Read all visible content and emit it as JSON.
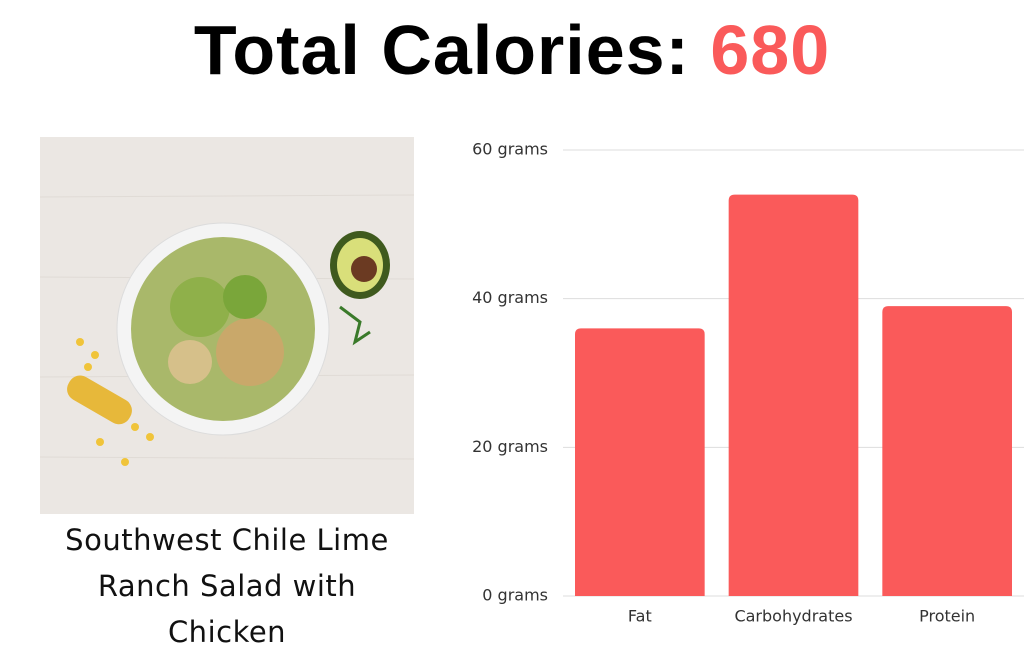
{
  "header": {
    "title": "Total Calories:",
    "calories": "680"
  },
  "caption": "Southwest Chile Lime Ranch Salad with Chicken",
  "chart_data": {
    "type": "bar",
    "categories": [
      "Fat",
      "Carbohydrates",
      "Protein"
    ],
    "values": [
      36,
      54,
      39
    ],
    "color": "#fa5a5a",
    "ylim": [
      0,
      60
    ],
    "yticks": [
      {
        "value": 0,
        "label": "0 grams"
      },
      {
        "value": 20,
        "label": "20 grams"
      },
      {
        "value": 40,
        "label": "40 grams"
      },
      {
        "value": 60,
        "label": "60 grams"
      }
    ],
    "grid": true
  }
}
